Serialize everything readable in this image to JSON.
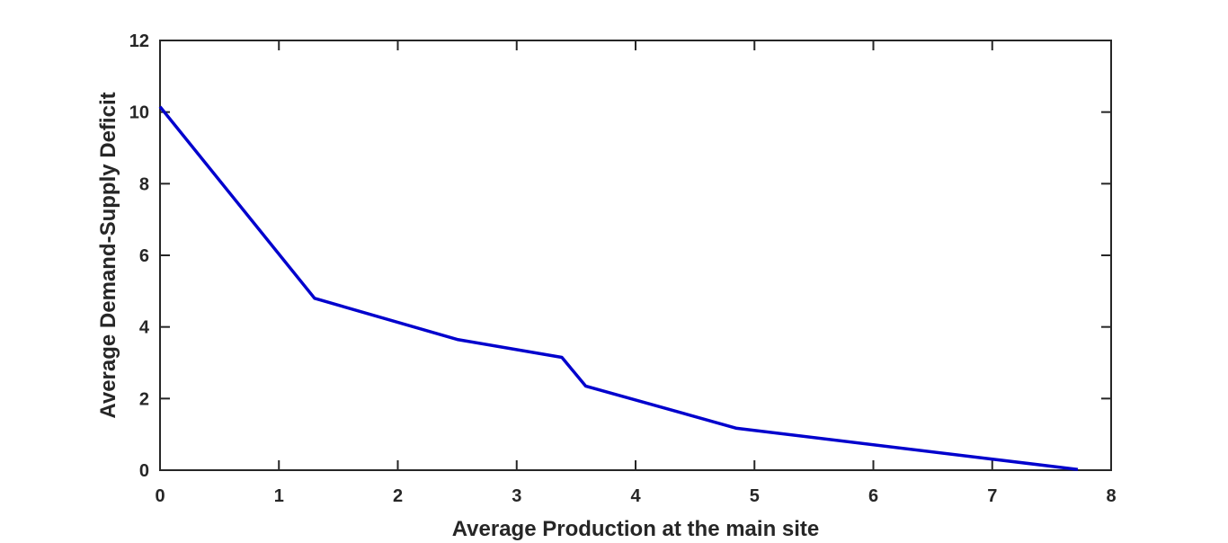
{
  "chart_data": {
    "type": "line",
    "title": "",
    "xlabel": "Average Production at the main site",
    "ylabel": "Average Demand-Supply Deficit",
    "xlim": [
      0,
      8
    ],
    "ylim": [
      0,
      12
    ],
    "xticks": [
      0,
      1,
      2,
      3,
      4,
      5,
      6,
      7,
      8
    ],
    "yticks": [
      0,
      2,
      4,
      6,
      8,
      10,
      12
    ],
    "grid": false,
    "legend": "none",
    "series": [
      {
        "color": "#0000cd",
        "x": [
          0,
          1.3,
          2.5,
          3.38,
          3.58,
          4.85,
          7.72
        ],
        "y": [
          10.15,
          4.8,
          3.65,
          3.15,
          2.35,
          1.17,
          0.02
        ]
      }
    ]
  }
}
